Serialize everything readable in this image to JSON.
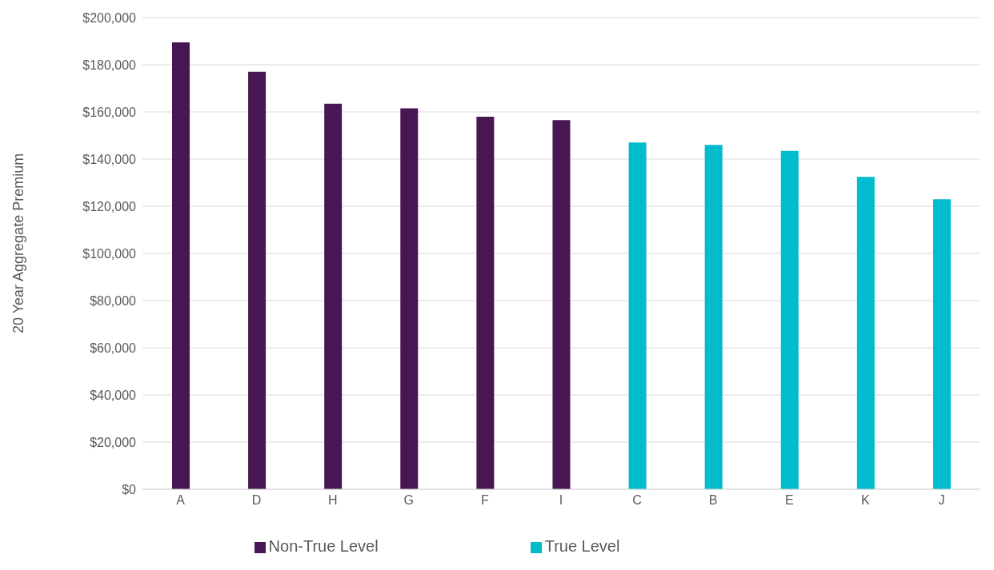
{
  "chart_data": {
    "type": "bar",
    "ylabel": "20 Year Aggregate Premium",
    "categories": [
      "A",
      "D",
      "H",
      "G",
      "F",
      "I",
      "C",
      "B",
      "E",
      "K",
      "J"
    ],
    "series": [
      {
        "name": "True Level",
        "color": "#00bccc",
        "values": [
          null,
          null,
          null,
          null,
          null,
          null,
          147000,
          146000,
          143500,
          132500,
          123000
        ]
      },
      {
        "name": "Non-True Level",
        "color": "#481652",
        "values": [
          189500,
          177000,
          163500,
          161500,
          158000,
          156500,
          null,
          null,
          null,
          null,
          null
        ]
      }
    ],
    "stacked": true,
    "ylim": [
      0,
      200000
    ],
    "yticks": [
      {
        "value": 0,
        "label": "$0"
      },
      {
        "value": 20000,
        "label": "$20,000"
      },
      {
        "value": 40000,
        "label": "$40,000"
      },
      {
        "value": 60000,
        "label": "$60,000"
      },
      {
        "value": 80000,
        "label": "$80,000"
      },
      {
        "value": 100000,
        "label": "$100,000"
      },
      {
        "value": 120000,
        "label": "$120,000"
      },
      {
        "value": 140000,
        "label": "$140,000"
      },
      {
        "value": 160000,
        "label": "$160,000"
      },
      {
        "value": 180000,
        "label": "$180,000"
      },
      {
        "value": 200000,
        "label": "$200,000"
      }
    ],
    "grid": "y",
    "legend": "bottom"
  }
}
